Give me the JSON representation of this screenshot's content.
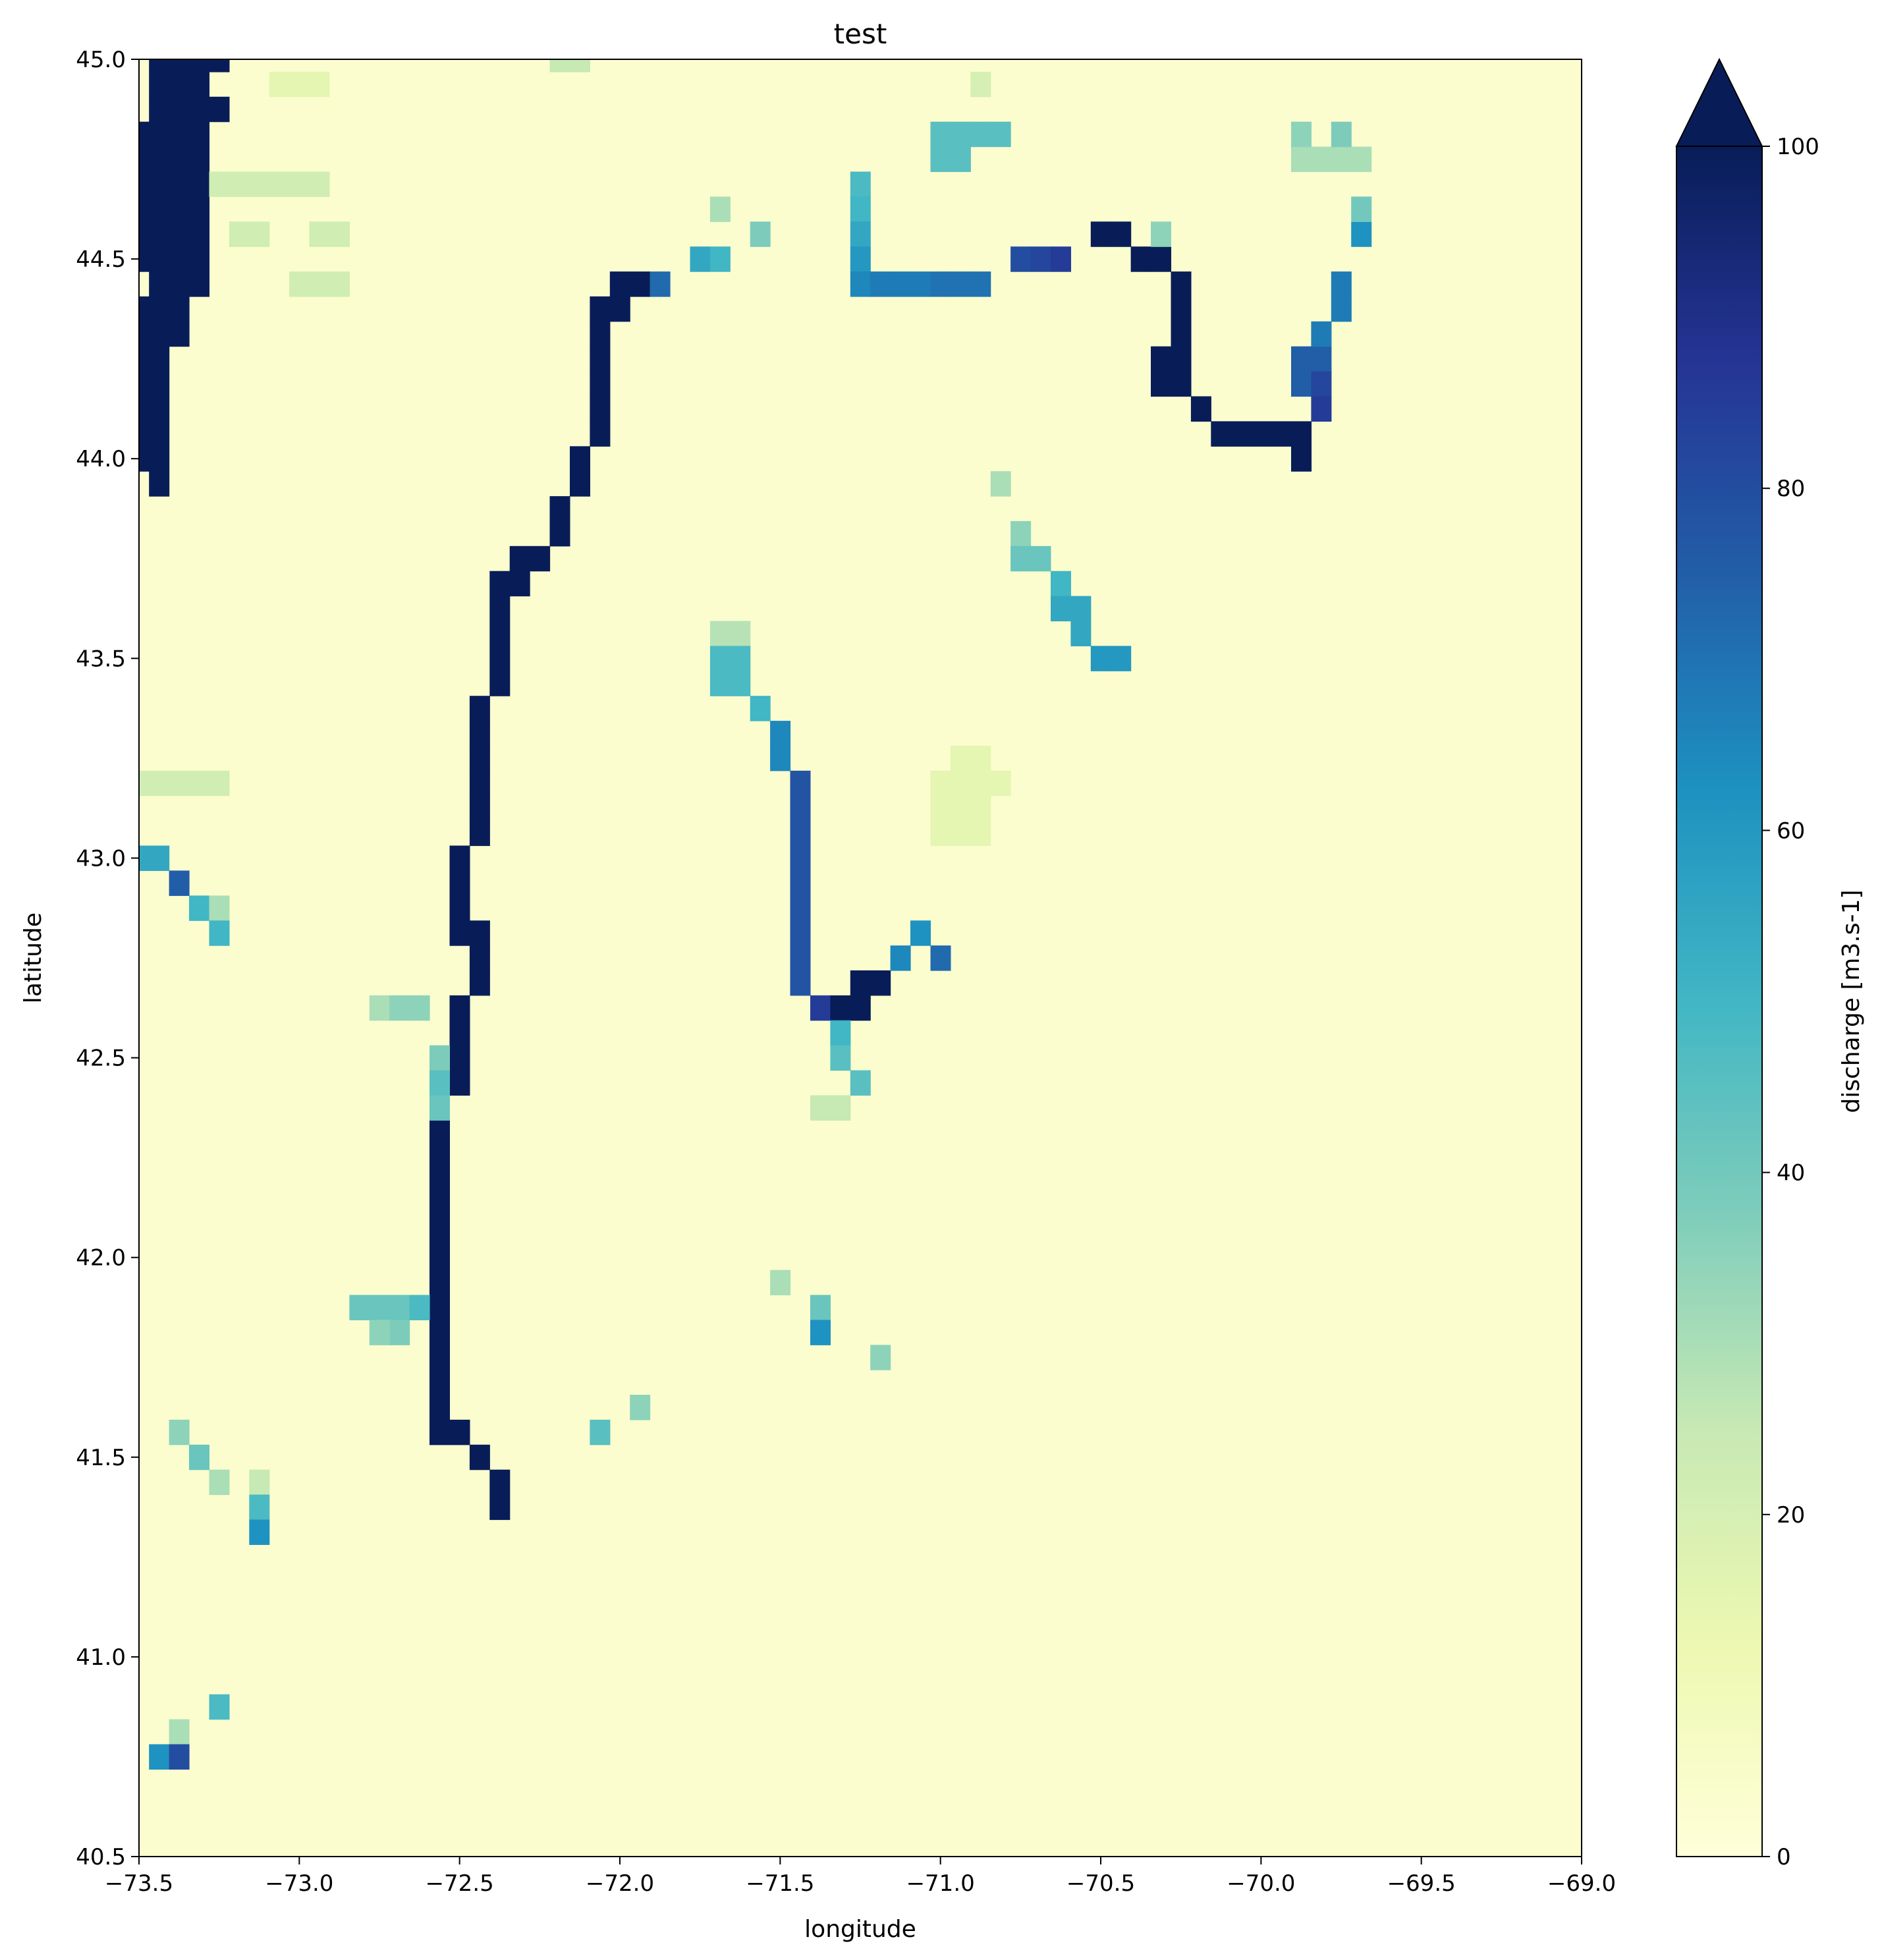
{
  "chart_data": {
    "type": "heatmap",
    "title": "test",
    "xlabel": "longitude",
    "ylabel": "latitude",
    "xlim": [
      -73.5,
      -69.0
    ],
    "ylim": [
      40.5,
      45.0
    ],
    "xticks": [
      -73.5,
      -73.0,
      -72.5,
      -72.0,
      -71.5,
      -71.0,
      -70.5,
      -70.0,
      -69.5,
      -69.0
    ],
    "xtick_labels": [
      "−73.5",
      "−73.0",
      "−72.5",
      "−72.0",
      "−71.5",
      "−71.0",
      "−70.5",
      "−70.0",
      "−69.5",
      "−69.0"
    ],
    "yticks": [
      40.5,
      41.0,
      41.5,
      42.0,
      42.5,
      43.0,
      43.5,
      44.0,
      44.5,
      45.0
    ],
    "ytick_labels": [
      "40.5",
      "41.0",
      "41.5",
      "42.0",
      "42.5",
      "43.0",
      "43.5",
      "44.0",
      "44.5",
      "45.0"
    ],
    "grid": false,
    "colormap": "YlGnBu",
    "colorbar": {
      "label": "discharge [m3.s-1]",
      "vmin": 0,
      "vmax": 100,
      "extend": "max",
      "ticks": [
        0,
        20,
        40,
        60,
        80,
        100
      ],
      "tick_labels": [
        "0",
        "20",
        "40",
        "60",
        "80",
        "100"
      ]
    },
    "grid_resolution_deg": 0.0625,
    "background_value": 3,
    "cells": [
      [
        -73.4375,
        45.0,
        100
      ],
      [
        -73.375,
        45.0,
        100
      ],
      [
        -73.3125,
        45.0,
        100
      ],
      [
        -73.25,
        45.0,
        100
      ],
      [
        -73.4375,
        44.9375,
        100
      ],
      [
        -73.375,
        44.9375,
        100
      ],
      [
        -73.3125,
        44.9375,
        100
      ],
      [
        -73.4375,
        44.875,
        100
      ],
      [
        -73.375,
        44.875,
        100
      ],
      [
        -73.3125,
        44.875,
        100
      ],
      [
        -73.25,
        44.875,
        100
      ],
      [
        -73.5,
        44.8125,
        100
      ],
      [
        -73.4375,
        44.8125,
        100
      ],
      [
        -73.375,
        44.8125,
        100
      ],
      [
        -73.3125,
        44.8125,
        100
      ],
      [
        -73.5,
        44.75,
        100
      ],
      [
        -73.4375,
        44.75,
        100
      ],
      [
        -73.375,
        44.75,
        100
      ],
      [
        -73.3125,
        44.75,
        100
      ],
      [
        -73.5,
        44.6875,
        100
      ],
      [
        -73.4375,
        44.6875,
        100
      ],
      [
        -73.375,
        44.6875,
        100
      ],
      [
        -73.3125,
        44.6875,
        100
      ],
      [
        -73.5,
        44.625,
        100
      ],
      [
        -73.4375,
        44.625,
        100
      ],
      [
        -73.375,
        44.625,
        100
      ],
      [
        -73.3125,
        44.625,
        100
      ],
      [
        -73.5,
        44.5625,
        100
      ],
      [
        -73.4375,
        44.5625,
        100
      ],
      [
        -73.375,
        44.5625,
        100
      ],
      [
        -73.3125,
        44.5625,
        100
      ],
      [
        -73.5,
        44.5,
        100
      ],
      [
        -73.4375,
        44.5,
        100
      ],
      [
        -73.375,
        44.5,
        100
      ],
      [
        -73.3125,
        44.5,
        100
      ],
      [
        -73.4375,
        44.4375,
        100
      ],
      [
        -73.375,
        44.4375,
        100
      ],
      [
        -73.3125,
        44.4375,
        100
      ],
      [
        -73.5,
        44.375,
        100
      ],
      [
        -73.4375,
        44.375,
        100
      ],
      [
        -73.375,
        44.375,
        100
      ],
      [
        -73.5,
        44.3125,
        100
      ],
      [
        -73.4375,
        44.3125,
        100
      ],
      [
        -73.375,
        44.3125,
        100
      ],
      [
        -73.5,
        44.25,
        100
      ],
      [
        -73.4375,
        44.25,
        100
      ],
      [
        -73.5,
        44.1875,
        100
      ],
      [
        -73.4375,
        44.1875,
        100
      ],
      [
        -73.5,
        44.125,
        100
      ],
      [
        -73.4375,
        44.125,
        100
      ],
      [
        -73.5,
        44.0625,
        100
      ],
      [
        -73.4375,
        44.0625,
        100
      ],
      [
        -73.5,
        44.0,
        100
      ],
      [
        -73.4375,
        44.0,
        100
      ],
      [
        -73.4375,
        43.9375,
        100
      ],
      [
        -73.25,
        44.6875,
        22
      ],
      [
        -73.1875,
        44.6875,
        22
      ],
      [
        -73.125,
        44.6875,
        22
      ],
      [
        -73.0625,
        44.6875,
        22
      ],
      [
        -73.0,
        44.6875,
        22
      ],
      [
        -72.9375,
        44.6875,
        22
      ],
      [
        -73.0625,
        44.9375,
        15
      ],
      [
        -73.0,
        44.9375,
        15
      ],
      [
        -72.9375,
        44.9375,
        15
      ],
      [
        -72.1875,
        45.0,
        25
      ],
      [
        -72.125,
        45.0,
        25
      ],
      [
        -73.1875,
        44.5625,
        22
      ],
      [
        -73.125,
        44.5625,
        22
      ],
      [
        -72.9375,
        44.5625,
        22
      ],
      [
        -72.875,
        44.5625,
        22
      ],
      [
        -73.0,
        44.4375,
        22
      ],
      [
        -72.9375,
        44.4375,
        22
      ],
      [
        -72.875,
        44.4375,
        22
      ],
      [
        -72.0,
        44.4375,
        100
      ],
      [
        -71.9375,
        44.4375,
        100
      ],
      [
        -71.875,
        44.4375,
        72
      ],
      [
        -71.75,
        44.5,
        55
      ],
      [
        -71.6875,
        44.5,
        50
      ],
      [
        -72.0625,
        44.375,
        100
      ],
      [
        -72.0,
        44.375,
        100
      ],
      [
        -72.0625,
        44.3125,
        100
      ],
      [
        -72.0625,
        44.25,
        100
      ],
      [
        -72.0625,
        44.1875,
        100
      ],
      [
        -72.0625,
        44.125,
        100
      ],
      [
        -72.0625,
        44.0625,
        100
      ],
      [
        -72.125,
        44.0,
        100
      ],
      [
        -72.125,
        43.9375,
        100
      ],
      [
        -72.1875,
        43.875,
        100
      ],
      [
        -72.1875,
        43.8125,
        100
      ],
      [
        -72.25,
        43.75,
        100
      ],
      [
        -72.3125,
        43.75,
        100
      ],
      [
        -72.3125,
        43.6875,
        100
      ],
      [
        -72.375,
        43.6875,
        100
      ],
      [
        -72.375,
        43.625,
        100
      ],
      [
        -72.375,
        43.5625,
        100
      ],
      [
        -72.375,
        43.5,
        100
      ],
      [
        -72.375,
        43.4375,
        100
      ],
      [
        -72.4375,
        43.375,
        100
      ],
      [
        -72.4375,
        43.3125,
        100
      ],
      [
        -72.4375,
        43.25,
        100
      ],
      [
        -72.4375,
        43.1875,
        100
      ],
      [
        -72.4375,
        43.125,
        100
      ],
      [
        -72.4375,
        43.0625,
        100
      ],
      [
        -72.5,
        43.0,
        100
      ],
      [
        -72.5,
        42.9375,
        100
      ],
      [
        -72.5,
        42.875,
        100
      ],
      [
        -72.5,
        42.8125,
        100
      ],
      [
        -72.4375,
        42.8125,
        100
      ],
      [
        -72.4375,
        42.75,
        100
      ],
      [
        -72.4375,
        42.6875,
        100
      ],
      [
        -72.5,
        42.625,
        100
      ],
      [
        -72.5,
        42.5625,
        100
      ],
      [
        -72.5,
        42.5,
        100
      ],
      [
        -72.5,
        42.4375,
        100
      ],
      [
        -72.5625,
        42.375,
        100
      ],
      [
        -72.5625,
        42.3125,
        100
      ],
      [
        -72.5625,
        42.25,
        100
      ],
      [
        -72.5625,
        42.1875,
        100
      ],
      [
        -72.5625,
        42.125,
        100
      ],
      [
        -72.5625,
        42.0625,
        100
      ],
      [
        -72.5625,
        42.0,
        100
      ],
      [
        -72.5625,
        41.9375,
        100
      ],
      [
        -72.5625,
        41.875,
        100
      ],
      [
        -72.5625,
        41.8125,
        100
      ],
      [
        -72.5625,
        41.75,
        100
      ],
      [
        -72.5625,
        41.6875,
        100
      ],
      [
        -72.5625,
        41.625,
        100
      ],
      [
        -72.5625,
        41.5625,
        100
      ],
      [
        -72.5,
        41.5625,
        100
      ],
      [
        -72.4375,
        41.5,
        100
      ],
      [
        -72.375,
        41.4375,
        100
      ],
      [
        -72.375,
        41.375,
        100
      ],
      [
        -72.5625,
        42.5,
        38
      ],
      [
        -72.5625,
        42.4375,
        45
      ],
      [
        -72.5625,
        42.375,
        42
      ],
      [
        -72.75,
        42.625,
        30
      ],
      [
        -72.6875,
        42.625,
        35
      ],
      [
        -72.625,
        42.625,
        35
      ],
      [
        -72.6875,
        41.875,
        42
      ],
      [
        -72.625,
        41.875,
        48
      ],
      [
        -72.6875,
        41.8125,
        38
      ],
      [
        -71.6875,
        44.625,
        30
      ],
      [
        -71.5625,
        44.5625,
        38
      ],
      [
        -71.6875,
        43.5625,
        28
      ],
      [
        -71.625,
        43.5625,
        28
      ],
      [
        -71.6875,
        43.5,
        48
      ],
      [
        -71.625,
        43.5,
        48
      ],
      [
        -71.6875,
        43.4375,
        48
      ],
      [
        -71.625,
        43.4375,
        48
      ],
      [
        -71.5625,
        43.375,
        50
      ],
      [
        -71.5,
        43.3125,
        65
      ],
      [
        -71.5,
        43.25,
        65
      ],
      [
        -71.4375,
        43.1875,
        78
      ],
      [
        -71.4375,
        43.125,
        78
      ],
      [
        -71.4375,
        43.0625,
        78
      ],
      [
        -71.4375,
        43.0,
        78
      ],
      [
        -71.4375,
        42.9375,
        78
      ],
      [
        -71.4375,
        42.875,
        78
      ],
      [
        -71.4375,
        42.8125,
        78
      ],
      [
        -71.4375,
        42.75,
        78
      ],
      [
        -71.4375,
        42.6875,
        78
      ],
      [
        -71.375,
        42.625,
        85
      ],
      [
        -71.3125,
        42.625,
        100
      ],
      [
        -71.25,
        42.625,
        100
      ],
      [
        -71.25,
        42.6875,
        100
      ],
      [
        -71.1875,
        42.6875,
        100
      ],
      [
        -71.3125,
        42.5625,
        50
      ],
      [
        -71.3125,
        42.5,
        45
      ],
      [
        -71.25,
        42.4375,
        45
      ],
      [
        -71.125,
        42.75,
        65
      ],
      [
        -71.0625,
        42.8125,
        62
      ],
      [
        -71.0,
        42.75,
        72
      ],
      [
        -71.5,
        41.9375,
        30
      ],
      [
        -71.375,
        41.875,
        42
      ],
      [
        -71.375,
        41.8125,
        62
      ],
      [
        -71.1875,
        41.75,
        35
      ],
      [
        -71.375,
        42.375,
        25
      ],
      [
        -71.3125,
        42.375,
        25
      ],
      [
        -73.5,
        43.0,
        55
      ],
      [
        -73.4375,
        43.0,
        55
      ],
      [
        -73.375,
        42.9375,
        75
      ],
      [
        -73.3125,
        42.875,
        50
      ],
      [
        -73.25,
        42.875,
        30
      ],
      [
        -73.25,
        42.8125,
        50
      ],
      [
        -72.8125,
        41.875,
        42
      ],
      [
        -72.75,
        41.875,
        42
      ],
      [
        -72.75,
        41.8125,
        35
      ],
      [
        -71.9375,
        41.625,
        35
      ],
      [
        -72.0625,
        41.5625,
        45
      ],
      [
        -73.375,
        41.5625,
        35
      ],
      [
        -73.3125,
        41.5,
        42
      ],
      [
        -73.25,
        41.4375,
        30
      ],
      [
        -73.125,
        41.4375,
        25
      ],
      [
        -73.125,
        41.375,
        48
      ],
      [
        -73.125,
        41.3125,
        62
      ],
      [
        -73.25,
        40.875,
        48
      ],
      [
        -73.375,
        40.8125,
        30
      ],
      [
        -73.4375,
        40.75,
        62
      ],
      [
        -73.375,
        40.75,
        80
      ],
      [
        -73.5,
        43.1875,
        22
      ],
      [
        -73.4375,
        43.1875,
        22
      ],
      [
        -73.375,
        43.1875,
        22
      ],
      [
        -73.3125,
        43.1875,
        22
      ],
      [
        -73.25,
        43.1875,
        22
      ],
      [
        -71.0,
        44.8125,
        45
      ],
      [
        -70.9375,
        44.8125,
        45
      ],
      [
        -70.875,
        44.8125,
        45
      ],
      [
        -70.8125,
        44.8125,
        45
      ],
      [
        -71.0,
        44.75,
        45
      ],
      [
        -70.9375,
        44.75,
        45
      ],
      [
        -71.25,
        44.6875,
        48
      ],
      [
        -71.25,
        44.625,
        50
      ],
      [
        -71.25,
        44.5625,
        55
      ],
      [
        -71.25,
        44.5,
        60
      ],
      [
        -71.25,
        44.4375,
        65
      ],
      [
        -71.1875,
        44.4375,
        68
      ],
      [
        -71.125,
        44.4375,
        68
      ],
      [
        -71.0625,
        44.4375,
        68
      ],
      [
        -71.0,
        44.4375,
        70
      ],
      [
        -70.9375,
        44.4375,
        70
      ],
      [
        -70.875,
        44.4375,
        70
      ],
      [
        -70.75,
        44.5,
        80
      ],
      [
        -70.6875,
        44.5,
        82
      ],
      [
        -70.625,
        44.5,
        85
      ],
      [
        -70.5,
        44.5625,
        100
      ],
      [
        -70.4375,
        44.5625,
        100
      ],
      [
        -70.375,
        44.5,
        100
      ],
      [
        -70.3125,
        44.5,
        100
      ],
      [
        -70.25,
        44.4375,
        100
      ],
      [
        -70.25,
        44.375,
        100
      ],
      [
        -70.25,
        44.3125,
        100
      ],
      [
        -70.3125,
        44.25,
        100
      ],
      [
        -70.25,
        44.25,
        100
      ],
      [
        -70.3125,
        44.1875,
        100
      ],
      [
        -70.25,
        44.1875,
        100
      ],
      [
        -70.1875,
        44.125,
        100
      ],
      [
        -70.125,
        44.0625,
        100
      ],
      [
        -70.0625,
        44.0625,
        100
      ],
      [
        -70.0,
        44.0625,
        100
      ],
      [
        -69.9375,
        44.0625,
        100
      ],
      [
        -69.875,
        44.0625,
        100
      ],
      [
        -69.875,
        44.0,
        100
      ],
      [
        -70.3125,
        44.5625,
        35
      ],
      [
        -70.875,
        44.9375,
        20
      ],
      [
        -69.875,
        44.25,
        75
      ],
      [
        -69.8125,
        44.25,
        75
      ],
      [
        -69.875,
        44.1875,
        75
      ],
      [
        -69.8125,
        44.1875,
        82
      ],
      [
        -69.8125,
        44.125,
        85
      ],
      [
        -69.8125,
        44.3125,
        68
      ],
      [
        -69.75,
        44.375,
        68
      ],
      [
        -69.75,
        44.4375,
        68
      ],
      [
        -69.6875,
        44.5625,
        62
      ],
      [
        -69.6875,
        44.625,
        40
      ],
      [
        -69.875,
        44.75,
        30
      ],
      [
        -69.8125,
        44.75,
        30
      ],
      [
        -69.75,
        44.75,
        30
      ],
      [
        -69.6875,
        44.75,
        30
      ],
      [
        -69.875,
        44.8125,
        35
      ],
      [
        -69.75,
        44.8125,
        38
      ],
      [
        -70.8125,
        43.9375,
        30
      ],
      [
        -70.75,
        43.8125,
        35
      ],
      [
        -70.75,
        43.75,
        42
      ],
      [
        -70.6875,
        43.75,
        42
      ],
      [
        -70.625,
        43.6875,
        50
      ],
      [
        -70.625,
        43.625,
        55
      ],
      [
        -70.5625,
        43.625,
        55
      ],
      [
        -70.5625,
        43.5625,
        55
      ],
      [
        -70.5,
        43.5,
        60
      ],
      [
        -70.4375,
        43.5,
        60
      ],
      [
        -70.9375,
        43.25,
        15
      ],
      [
        -70.875,
        43.25,
        15
      ],
      [
        -71.0,
        43.1875,
        15
      ],
      [
        -70.9375,
        43.1875,
        15
      ],
      [
        -70.875,
        43.1875,
        15
      ],
      [
        -70.8125,
        43.1875,
        15
      ],
      [
        -71.0,
        43.125,
        15
      ],
      [
        -70.9375,
        43.125,
        15
      ],
      [
        -70.875,
        43.125,
        15
      ],
      [
        -71.0,
        43.0625,
        15
      ],
      [
        -70.9375,
        43.0625,
        15
      ],
      [
        -70.875,
        43.0625,
        15
      ]
    ]
  }
}
